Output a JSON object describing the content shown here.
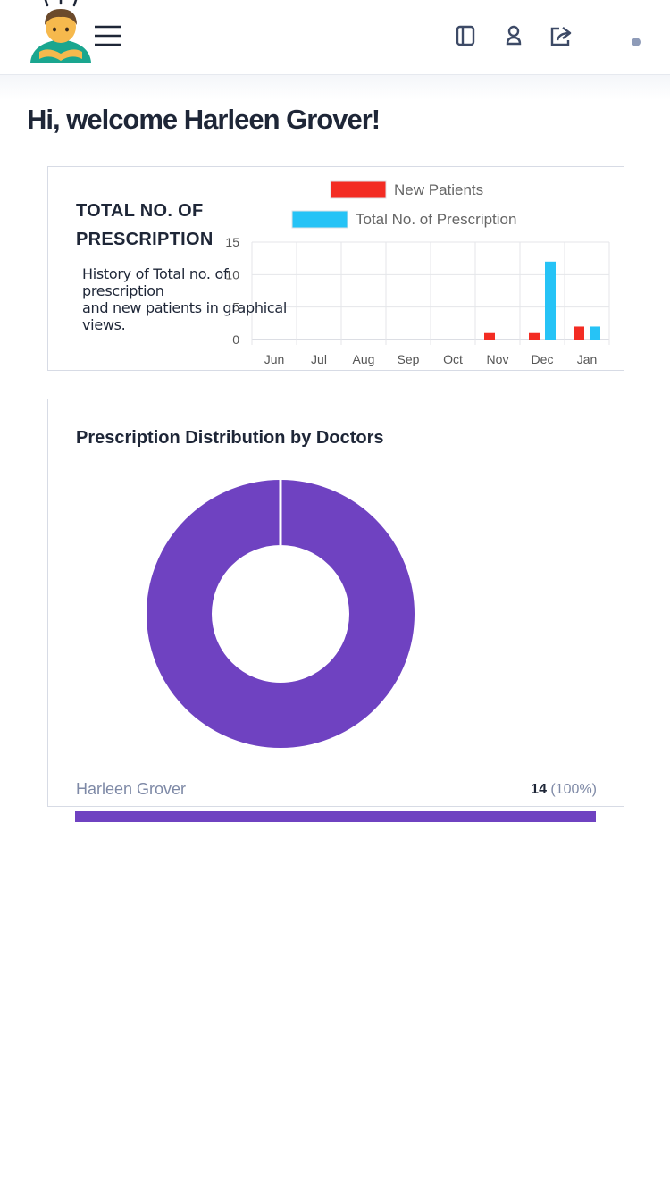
{
  "header": {
    "avatar_icon": "person-bowing-emoji-icon",
    "menu_icon": "hamburger-menu-icon",
    "actions": [
      "copy-icon",
      "user-icon",
      "share-icon"
    ]
  },
  "welcome": {
    "text": "Hi, welcome Harleen Grover!"
  },
  "prescription_card": {
    "title": "TOTAL NO. OF PRESCRIPTION",
    "description": "History of Total no. of prescription\nand new patients in graphical views."
  },
  "distribution_card": {
    "title": "Prescription Distribution by Doctors",
    "legend": {
      "name": "Harleen Grover",
      "count": "14",
      "percent": "(100%)"
    },
    "progress_fraction": 1.0
  },
  "colors": {
    "new_patients": "#f32c23",
    "prescriptions": "#26c3f6",
    "donut": "#6f42c1",
    "text": "#1e2637",
    "muted": "#7e89a6"
  },
  "chart_data": [
    {
      "type": "bar",
      "title": "TOTAL NO. OF PRESCRIPTION",
      "categories": [
        "Jun",
        "Jul",
        "Aug",
        "Sep",
        "Oct",
        "Nov",
        "Dec",
        "Jan"
      ],
      "series": [
        {
          "name": "New Patients",
          "values": [
            0,
            0,
            0,
            0,
            0,
            1,
            1,
            2
          ]
        },
        {
          "name": "Total No. of Prescription",
          "values": [
            0,
            0,
            0,
            0,
            0,
            0,
            12,
            2
          ]
        }
      ],
      "yticks": [
        0,
        5,
        10,
        15
      ],
      "ylim": [
        0,
        15
      ],
      "legend": "top"
    },
    {
      "type": "pie",
      "title": "Prescription Distribution by Doctors",
      "labels": [
        "Harleen Grover"
      ],
      "values": [
        14
      ],
      "percent": [
        100
      ]
    }
  ]
}
